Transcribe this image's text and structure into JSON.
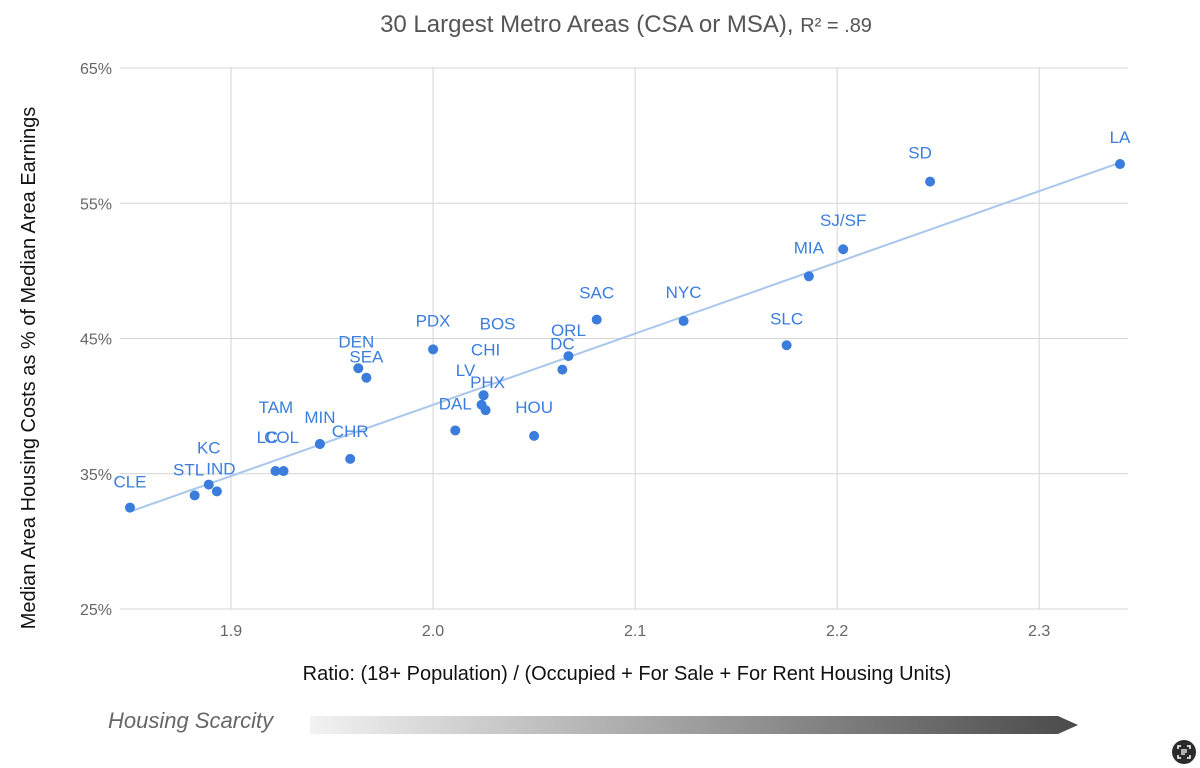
{
  "chart_data": {
    "type": "scatter",
    "title": "30 Largest Metro Areas (CSA or MSA), ",
    "title_r2": "R² = .89",
    "xlabel": "Ratio: (18+ Population) / (Occupied + For Sale + For Rent Housing Units)",
    "ylabel": "Median Area Housing Costs as % of Median Area Earnings",
    "xlim": [
      1.85,
      2.34
    ],
    "ylim": [
      25,
      65
    ],
    "x_ticks": [
      1.9,
      2.0,
      2.1,
      2.2,
      2.3
    ],
    "x_tick_labels": [
      "1.9",
      "2.0",
      "2.1",
      "2.2",
      "2.3"
    ],
    "y_ticks": [
      25,
      35,
      45,
      55,
      65
    ],
    "y_tick_labels": [
      "25%",
      "35%",
      "45%",
      "55%",
      "65%"
    ],
    "grid": true,
    "trendline": {
      "x": [
        1.85,
        2.34
      ],
      "y": [
        32.2,
        58.0
      ]
    },
    "point_color": "#3b7ddd",
    "trend_color": "#a9c7ec",
    "points": [
      {
        "label": "CLE",
        "x": 1.85,
        "y": 32.5
      },
      {
        "label": "STL",
        "x": 1.882,
        "y": 33.4
      },
      {
        "label": "KC",
        "x": 1.889,
        "y": 34.2
      },
      {
        "label": "IND",
        "x": 1.893,
        "y": 33.7
      },
      {
        "label": "LC",
        "x": 1.922,
        "y": 35.2
      },
      {
        "label": "COL",
        "x": 1.926,
        "y": 35.2
      },
      {
        "label": "TAM",
        "x": 1.944,
        "y": 37.2
      },
      {
        "label": "MIN",
        "x": 1.944,
        "y": 37.2
      },
      {
        "label": "CHR",
        "x": 1.959,
        "y": 36.1
      },
      {
        "label": "DEN",
        "x": 1.963,
        "y": 42.8
      },
      {
        "label": "SEA",
        "x": 1.967,
        "y": 42.1
      },
      {
        "label": "PDX",
        "x": 2.0,
        "y": 44.2
      },
      {
        "label": "DAL",
        "x": 2.011,
        "y": 38.2
      },
      {
        "label": "LV",
        "x": 2.024,
        "y": 40.1
      },
      {
        "label": "PHX",
        "x": 2.026,
        "y": 39.7
      },
      {
        "label": "CHI",
        "x": 2.025,
        "y": 40.8
      },
      {
        "label": "BOS",
        "x": 2.025,
        "y": 40.8
      },
      {
        "label": "HOU",
        "x": 2.05,
        "y": 37.8
      },
      {
        "label": "DC",
        "x": 2.064,
        "y": 42.7
      },
      {
        "label": "ORL",
        "x": 2.067,
        "y": 43.7
      },
      {
        "label": "SAC",
        "x": 2.081,
        "y": 46.4
      },
      {
        "label": "NYC",
        "x": 2.124,
        "y": 46.3
      },
      {
        "label": "SLC",
        "x": 2.175,
        "y": 44.5
      },
      {
        "label": "MIA",
        "x": 2.186,
        "y": 49.6
      },
      {
        "label": "SJ/SF",
        "x": 2.203,
        "y": 51.6
      },
      {
        "label": "SD",
        "x": 2.246,
        "y": 56.6
      },
      {
        "label": "LA",
        "x": 2.34,
        "y": 57.9
      }
    ],
    "scarcity_label": "Housing Scarcity"
  }
}
